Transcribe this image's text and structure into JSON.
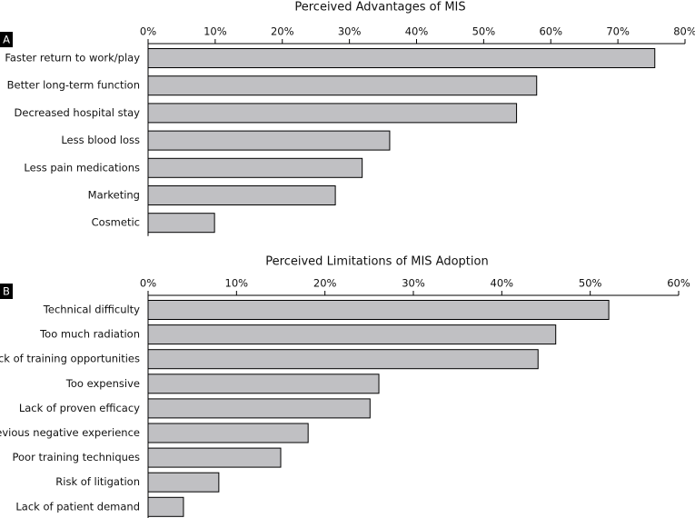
{
  "chart_data": [
    {
      "type": "bar",
      "orientation": "horizontal",
      "panel": "A",
      "title": "Perceived Advantages of MIS",
      "categories": [
        "Faster return to work/play",
        "Better long-term function",
        "Decreased hospital stay",
        "Less blood loss",
        "Less pain medications",
        "Marketing",
        "Cosmetic"
      ],
      "values": [
        75.5,
        57.9,
        54.9,
        36.0,
        31.9,
        27.9,
        9.9
      ],
      "color": "#c0c0c3",
      "xlim": [
        0,
        80
      ],
      "xticks": [
        {
          "value": 0,
          "label": "0%"
        },
        {
          "value": 10,
          "label": "10%"
        },
        {
          "value": 20,
          "label": "20%"
        },
        {
          "value": 30,
          "label": "30%"
        },
        {
          "value": 40,
          "label": "40%"
        },
        {
          "value": 50,
          "label": "50%"
        },
        {
          "value": 60,
          "label": "60%"
        },
        {
          "value": 70,
          "label": "70%"
        },
        {
          "value": 80,
          "label": "80%"
        }
      ]
    },
    {
      "type": "bar",
      "orientation": "horizontal",
      "panel": "B",
      "title": "Perceived Limitations of MIS Adoption",
      "categories": [
        "Technical difficulty",
        "Too much radiation",
        "Lack of training opportunities",
        "Too expensive",
        "Lack of proven efficacy",
        "Previous negative experience",
        "Poor training techniques",
        "Risk of litigation",
        "Lack of patient demand"
      ],
      "values": [
        52.1,
        46.1,
        44.1,
        26.1,
        25.1,
        18.1,
        15.0,
        8.0,
        4.0
      ],
      "color": "#c0c0c3",
      "xlim": [
        0,
        60
      ],
      "xticks": [
        {
          "value": 0,
          "label": "0%"
        },
        {
          "value": 10,
          "label": "10%"
        },
        {
          "value": 20,
          "label": "20%"
        },
        {
          "value": 30,
          "label": "30%"
        },
        {
          "value": 40,
          "label": "40%"
        },
        {
          "value": 50,
          "label": "50%"
        },
        {
          "value": 60,
          "label": "60%"
        }
      ]
    }
  ]
}
